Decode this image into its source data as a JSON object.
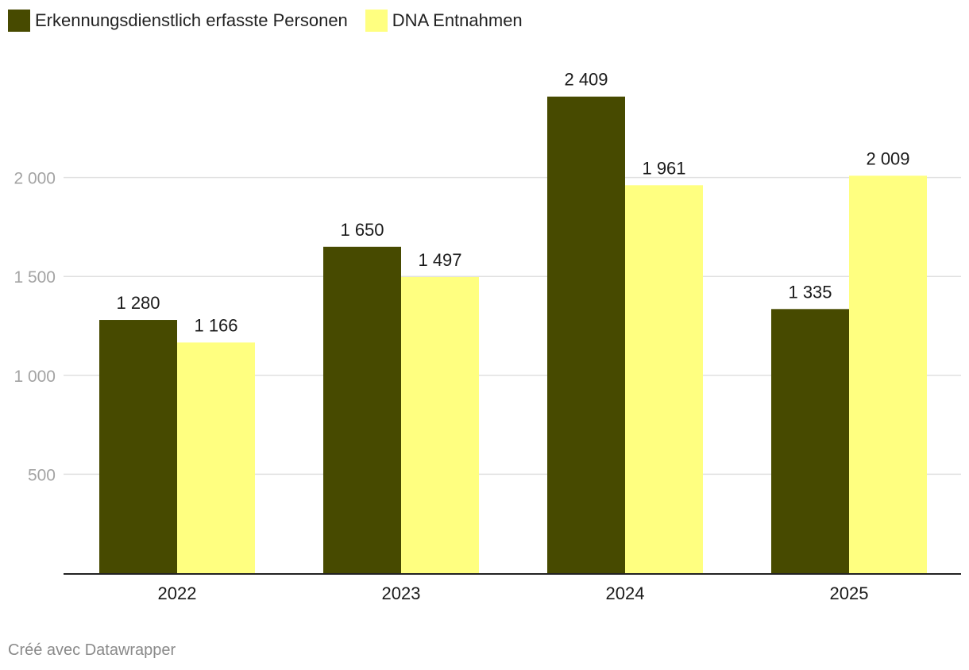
{
  "chart_data": {
    "type": "bar",
    "title": "",
    "xlabel": "",
    "ylabel": "",
    "categories": [
      "2022",
      "2023",
      "2024",
      "2025"
    ],
    "series": [
      {
        "name": "Erkennungsdienstlich erfasste Personen",
        "values": [
          1280,
          1650,
          2409,
          1335
        ],
        "labels": [
          "1 280",
          "1 650",
          "2 409",
          "1 335"
        ],
        "color": "#474a00"
      },
      {
        "name": "DNA Entnahmen",
        "values": [
          1166,
          1497,
          1961,
          2009
        ],
        "labels": [
          "1 166",
          "1 497",
          "1 961",
          "2 009"
        ],
        "color": "#ffff80"
      }
    ],
    "ylim": [
      0,
      2500
    ],
    "yticks": [
      500,
      1000,
      1500,
      2000
    ],
    "ytick_labels": [
      "500",
      "1 000",
      "1 500",
      "2 000"
    ],
    "grid": true,
    "legend_position": "top-left"
  },
  "footer": {
    "credit": "Créé avec Datawrapper"
  }
}
